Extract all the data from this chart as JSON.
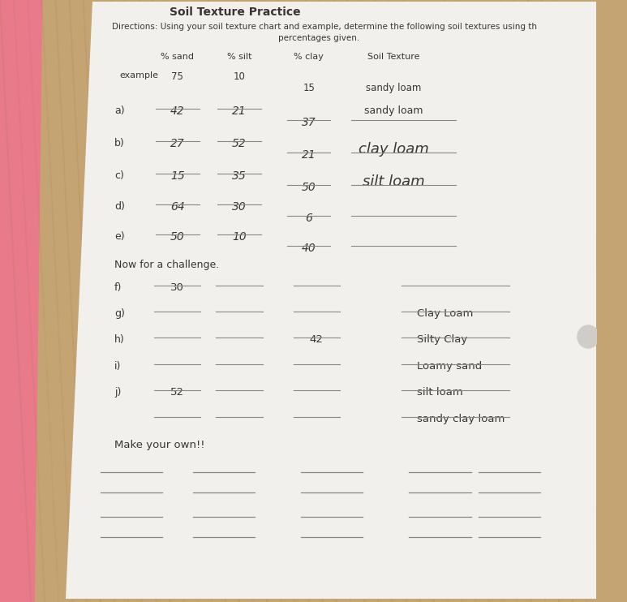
{
  "title": "Soil Texture Practice",
  "directions_line1": "Directions: Using your soil texture chart and example, determine the following soil textures using th",
  "directions_line2": "percentages given.",
  "bg_wood_color": "#c4a472",
  "paper_color": "#f2f0ed",
  "paper_shadow": "#b0a898",
  "text_color": "#3a3530",
  "header_cols": [
    "% sand",
    "% silt",
    "% clay",
    "Soil Texture"
  ],
  "example_label": "example",
  "example_vals": [
    "75",
    "10",
    "15",
    "sandy loam"
  ],
  "rows": [
    {
      "letter": "a)",
      "sand": "42",
      "silt": "21",
      "clay": "37",
      "texture": "sandy loam",
      "texture_style": "normal"
    },
    {
      "letter": "b)",
      "sand": "27",
      "silt": "52",
      "clay": "21",
      "texture": "clay loam",
      "texture_style": "handwritten"
    },
    {
      "letter": "c)",
      "sand": "15",
      "silt": "35",
      "clay": "50",
      "texture": "silt loam",
      "texture_style": "handwritten"
    },
    {
      "letter": "d)",
      "sand": "64",
      "silt": "30",
      "clay": "6",
      "texture": "",
      "texture_style": "normal"
    },
    {
      "letter": "e)",
      "sand": "50",
      "silt": "10",
      "clay": "40",
      "texture": "",
      "texture_style": "normal"
    }
  ],
  "challenge_header": "Now for a challenge.",
  "challenge_rows": [
    {
      "letter": "f)",
      "sand": "30",
      "silt": "",
      "clay": "",
      "texture": ""
    },
    {
      "letter": "g)",
      "sand": "",
      "silt": "",
      "clay": "",
      "texture": "Clay Loam"
    },
    {
      "letter": "h)",
      "sand": "",
      "silt": "",
      "clay": "42",
      "texture": "Silty Clay"
    },
    {
      "letter": "i)",
      "sand": "",
      "silt": "",
      "clay": "",
      "texture": "Loamy sand"
    },
    {
      "letter": "j)",
      "sand": "52",
      "silt": "",
      "clay": "",
      "texture": "silt loam"
    },
    {
      "letter": "",
      "sand": "",
      "silt": "",
      "clay": "",
      "texture": "sandy clay loam"
    }
  ],
  "make_own": "Make your own!!",
  "pink_notebook_color": "#e87a8a",
  "circle_color": "#d0ccc8"
}
